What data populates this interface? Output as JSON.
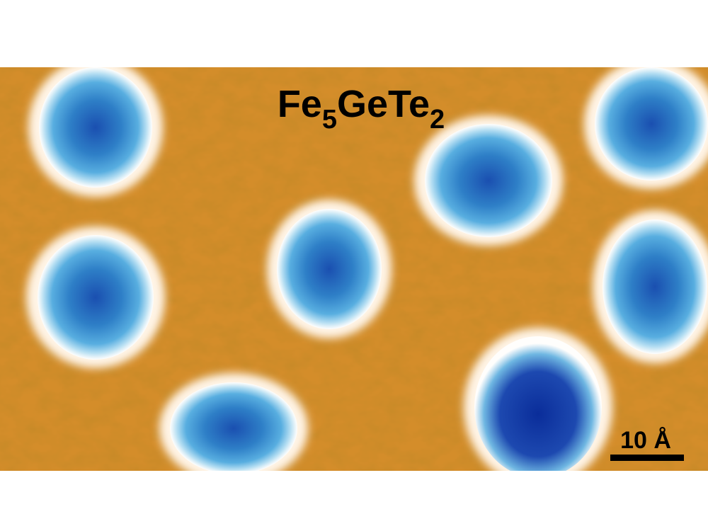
{
  "image": {
    "label": {
      "parts": [
        "Fe",
        "5",
        "GeTe",
        "2"
      ]
    },
    "scale_bar": "10 Å"
  }
}
